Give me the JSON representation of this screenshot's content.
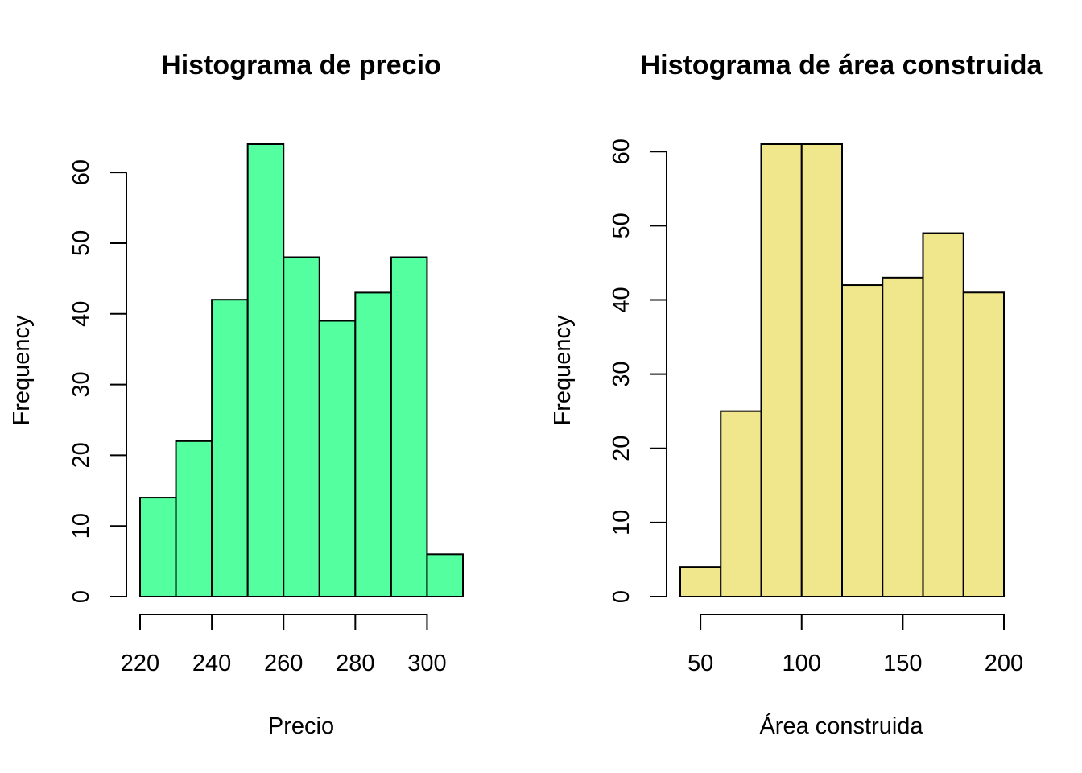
{
  "chart_data": [
    {
      "type": "bar",
      "title": "Histograma de precio",
      "xlabel": "Precio",
      "ylabel": "Frequency",
      "color": "#54FF9F",
      "bin_edges": [
        220,
        230,
        240,
        250,
        260,
        270,
        280,
        290,
        300,
        310
      ],
      "values": [
        14,
        22,
        42,
        64,
        48,
        39,
        43,
        48,
        6
      ],
      "xticks": [
        220,
        240,
        260,
        280,
        300
      ],
      "yticks": [
        0,
        10,
        20,
        30,
        40,
        50,
        60
      ],
      "xlim": [
        220,
        310
      ],
      "ylim": [
        0,
        64
      ],
      "grid": false
    },
    {
      "type": "bar",
      "title": "Histograma de área construida",
      "xlabel": "Área construida",
      "ylabel": "Frequency",
      "color": "#F0E68C",
      "bin_edges": [
        40,
        60,
        80,
        100,
        120,
        140,
        160,
        180,
        200
      ],
      "values": [
        4,
        25,
        61,
        61,
        42,
        43,
        49,
        41
      ],
      "xticks": [
        50,
        100,
        150,
        200
      ],
      "yticks": [
        0,
        10,
        20,
        30,
        40,
        50,
        60
      ],
      "xlim": [
        40,
        200
      ],
      "ylim": [
        0,
        61
      ],
      "grid": false
    }
  ]
}
